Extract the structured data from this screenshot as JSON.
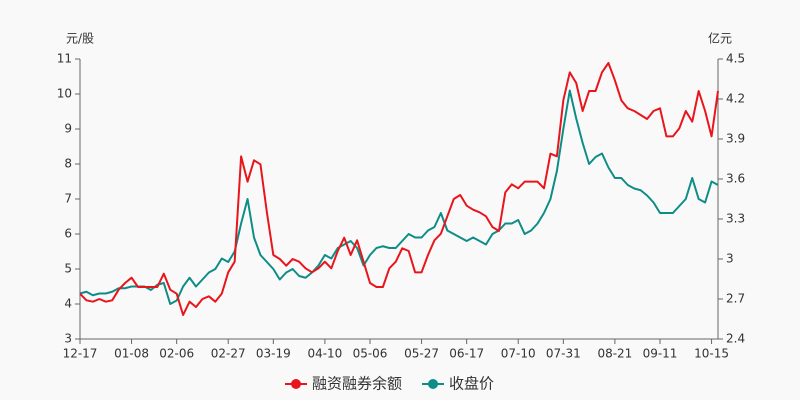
{
  "chart_data": {
    "type": "line",
    "y_label": "元/股",
    "y2_label": "亿元",
    "categories": [
      "12-17",
      null,
      null,
      null,
      null,
      null,
      null,
      null,
      "01-08",
      null,
      null,
      null,
      null,
      null,
      null,
      "02-06",
      null,
      null,
      null,
      null,
      null,
      null,
      null,
      "02-27",
      null,
      null,
      null,
      null,
      null,
      null,
      "03-19",
      null,
      null,
      null,
      null,
      null,
      null,
      null,
      "04-10",
      null,
      null,
      null,
      null,
      null,
      null,
      "05-06",
      null,
      null,
      null,
      null,
      null,
      null,
      null,
      "05-27",
      null,
      null,
      null,
      null,
      null,
      null,
      "06-17",
      null,
      null,
      null,
      null,
      null,
      null,
      null,
      "07-10",
      null,
      null,
      null,
      null,
      null,
      null,
      "07-31",
      null,
      null,
      null,
      null,
      null,
      null,
      null,
      "08-21",
      null,
      null,
      null,
      null,
      null,
      null,
      "09-11",
      null,
      null,
      null,
      null,
      null,
      null,
      null,
      "10-15",
      null
    ],
    "series": [
      {
        "name": "融资融券余额",
        "color": "#e8161c",
        "axis": "y2",
        "values": [
          2.74,
          2.69,
          2.68,
          2.7,
          2.68,
          2.69,
          2.77,
          2.82,
          2.86,
          2.79,
          2.79,
          2.79,
          2.79,
          2.89,
          2.77,
          2.74,
          2.58,
          2.68,
          2.64,
          2.7,
          2.72,
          2.68,
          2.74,
          2.9,
          2.98,
          3.77,
          3.58,
          3.74,
          3.71,
          3.35,
          3.03,
          3.0,
          2.95,
          3.0,
          2.98,
          2.93,
          2.9,
          2.93,
          2.98,
          2.93,
          3.06,
          3.16,
          3.03,
          3.14,
          2.98,
          2.82,
          2.79,
          2.79,
          2.93,
          2.98,
          3.08,
          3.06,
          2.9,
          2.9,
          3.03,
          3.14,
          3.19,
          3.32,
          3.45,
          3.48,
          3.4,
          3.37,
          3.35,
          3.32,
          3.24,
          3.21,
          3.5,
          3.56,
          3.53,
          3.58,
          3.58,
          3.58,
          3.53,
          3.79,
          3.77,
          4.19,
          4.4,
          4.32,
          4.11,
          4.26,
          4.26,
          4.4,
          4.47,
          4.34,
          4.19,
          4.13,
          4.11,
          4.08,
          4.05,
          4.11,
          4.13,
          3.92,
          3.92,
          3.98,
          4.11,
          4.03,
          4.26,
          4.11,
          3.92,
          4.26
        ]
      },
      {
        "name": "收盘价",
        "color": "#0e8d87",
        "axis": "y",
        "values": [
          4.3,
          4.35,
          4.25,
          4.3,
          4.3,
          4.35,
          4.45,
          4.45,
          4.5,
          4.5,
          4.5,
          4.4,
          4.55,
          4.6,
          4.0,
          4.1,
          4.5,
          4.75,
          4.5,
          4.7,
          4.9,
          5.0,
          5.3,
          5.2,
          5.5,
          6.3,
          7.0,
          5.9,
          5.4,
          5.2,
          5.0,
          4.7,
          4.9,
          5.0,
          4.8,
          4.75,
          4.9,
          5.1,
          5.4,
          5.3,
          5.6,
          5.7,
          5.8,
          5.6,
          5.1,
          5.4,
          5.6,
          5.65,
          5.6,
          5.6,
          5.8,
          6.0,
          5.9,
          5.9,
          6.1,
          6.2,
          6.6,
          6.1,
          6.0,
          5.9,
          5.8,
          5.9,
          5.8,
          5.7,
          6.0,
          6.1,
          6.3,
          6.3,
          6.4,
          6.0,
          6.1,
          6.3,
          6.6,
          7.0,
          7.8,
          9.0,
          10.1,
          9.3,
          8.6,
          8.0,
          8.2,
          8.3,
          7.9,
          7.6,
          7.6,
          7.4,
          7.3,
          7.25,
          7.1,
          6.9,
          6.6,
          6.6,
          6.6,
          6.8,
          7.0,
          7.6,
          7.0,
          6.9,
          7.5,
          7.4
        ]
      }
    ],
    "ylim": [
      3,
      11
    ],
    "yticks": [
      3,
      4,
      5,
      6,
      7,
      8,
      9,
      10,
      11
    ],
    "y2lim": [
      2.4,
      4.5
    ],
    "y2ticks": [
      2.4,
      2.7,
      3,
      3.3,
      3.6,
      3.9,
      4.2,
      4.5
    ],
    "grid": false,
    "legend": "bottom"
  }
}
